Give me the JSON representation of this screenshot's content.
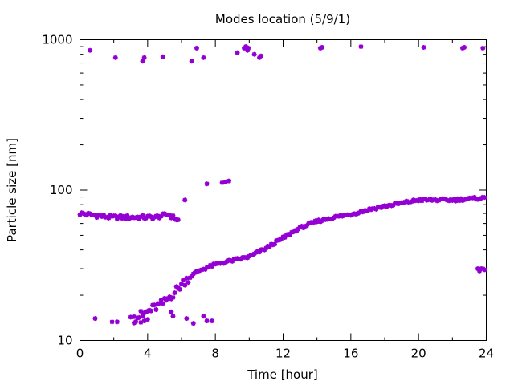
{
  "chart_data": {
    "type": "scatter",
    "title": "Modes location (5/9/1)",
    "xlabel": "Time [hour]",
    "ylabel": "Particle size [nm]",
    "xlim": [
      0,
      24
    ],
    "ylim": [
      10,
      1000
    ],
    "yscale": "log",
    "xticks": [
      0,
      4,
      8,
      12,
      16,
      20,
      24
    ],
    "yticks": [
      10,
      100,
      1000
    ],
    "grid": false,
    "marker_color": "#9400d3",
    "series": [
      {
        "points": [
          [
            0.6,
            850
          ],
          [
            2.1,
            760
          ],
          [
            3.7,
            720
          ],
          [
            3.8,
            760
          ],
          [
            4.9,
            770
          ],
          [
            6.6,
            720
          ],
          [
            6.9,
            880
          ],
          [
            7.3,
            760
          ],
          [
            9.3,
            820
          ],
          [
            9.7,
            880
          ],
          [
            9.8,
            900
          ],
          [
            9.9,
            850
          ],
          [
            9.95,
            880
          ],
          [
            10.3,
            800
          ],
          [
            10.6,
            760
          ],
          [
            10.7,
            780
          ],
          [
            14.2,
            880
          ],
          [
            14.3,
            890
          ],
          [
            16.6,
            900
          ],
          [
            20.3,
            890
          ],
          [
            22.6,
            880
          ],
          [
            22.7,
            890
          ],
          [
            23.8,
            880
          ],
          [
            7.5,
            110
          ],
          [
            8.4,
            112
          ],
          [
            8.6,
            113
          ],
          [
            8.8,
            115
          ],
          [
            6.2,
            86
          ],
          [
            0.9,
            14
          ],
          [
            1.9,
            13.3
          ],
          [
            2.2,
            13.3
          ],
          [
            3.0,
            14.3
          ],
          [
            3.2,
            14.4
          ],
          [
            3.6,
            13.2
          ],
          [
            3.7,
            14.5
          ],
          [
            3.8,
            13.5
          ],
          [
            4.0,
            13.8
          ],
          [
            5.4,
            15.5
          ],
          [
            5.5,
            14.5
          ],
          [
            6.3,
            14
          ],
          [
            6.7,
            13
          ],
          [
            7.3,
            14.5
          ],
          [
            7.5,
            13.5
          ],
          [
            7.8,
            13.5
          ],
          [
            23.5,
            30
          ],
          [
            23.6,
            29
          ],
          [
            23.7,
            30
          ],
          [
            23.8,
            30
          ],
          [
            23.9,
            29.5
          ]
        ]
      }
    ]
  }
}
